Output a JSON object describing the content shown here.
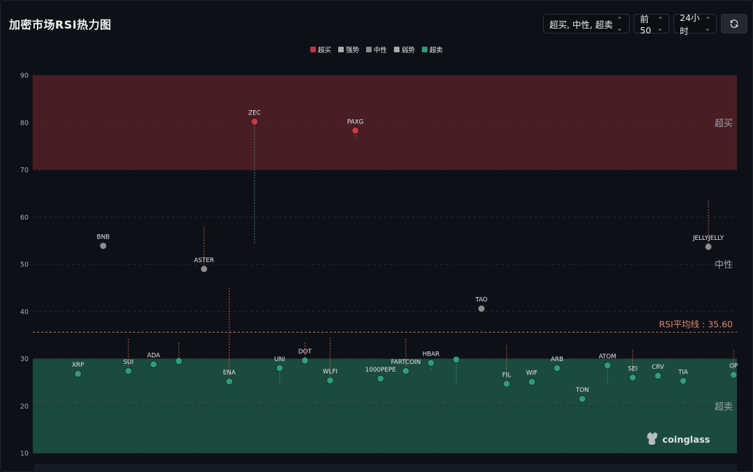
{
  "header": {
    "title": "加密市场RSI热力图",
    "filter_label": "超买, 中性, 超卖",
    "top_label": "前50",
    "period_label": "24小时"
  },
  "legend": [
    {
      "label": "超买",
      "color": "#c0353f"
    },
    {
      "label": "强势",
      "color": "#a9a9a9"
    },
    {
      "label": "中性",
      "color": "#8a8a8a"
    },
    {
      "label": "弱势",
      "color": "#a9a9a9"
    },
    {
      "label": "超卖",
      "color": "#2e9a7c"
    }
  ],
  "watermark": "coinglass",
  "chart_data": {
    "type": "scatter",
    "y_range": [
      10,
      90
    ],
    "y_ticks": [
      10,
      20,
      30,
      40,
      50,
      60,
      70,
      80,
      90
    ],
    "grid": true,
    "zones": [
      {
        "label": "超买",
        "from": 70,
        "to": 90,
        "color": "#4a1d24"
      },
      {
        "label": "中性",
        "from": 30,
        "to": 70,
        "color": null
      },
      {
        "label": "超卖",
        "from": 10,
        "to": 30,
        "color": "#1b4a3e"
      }
    ],
    "average": {
      "label": "RSI平均线 : 35.60",
      "value": 35.6
    },
    "points": [
      {
        "name": "XRP",
        "rsi": 26.8,
        "group": "超卖"
      },
      {
        "name": "BNB",
        "rsi": 53.9,
        "group": "中性"
      },
      {
        "name": "SUI",
        "rsi": 27.4,
        "group": "超卖",
        "range": [
          27.4,
          34.5
        ]
      },
      {
        "name": "ADA",
        "rsi": 28.8,
        "group": "超卖"
      },
      {
        "name": "",
        "rsi": 29.5,
        "group": "超卖",
        "range": [
          29.5,
          33.5
        ]
      },
      {
        "name": "ASTER",
        "rsi": 49.0,
        "group": "中性",
        "range": [
          49.0,
          58.0
        ]
      },
      {
        "name": "ENA",
        "rsi": 25.2,
        "group": "超卖",
        "range": [
          25.2,
          45.0
        ]
      },
      {
        "name": "ZEC",
        "rsi": 80.2,
        "group": "超买",
        "range": [
          54.5,
          80.2
        ]
      },
      {
        "name": "UNI",
        "rsi": 28.0,
        "group": "超卖",
        "range": [
          25.0,
          28.0
        ]
      },
      {
        "name": "DOT",
        "rsi": 29.6,
        "group": "超卖",
        "range": [
          29.6,
          33.5
        ]
      },
      {
        "name": "WLFI",
        "rsi": 25.4,
        "group": "超卖",
        "range": [
          25.4,
          34.5
        ]
      },
      {
        "name": "PAXG",
        "rsi": 78.3,
        "group": "超买",
        "range": [
          77.0,
          78.3
        ]
      },
      {
        "name": "1000PEPE",
        "rsi": 25.8,
        "group": "超卖"
      },
      {
        "name": "FARTCOIN",
        "rsi": 27.4,
        "group": "超卖",
        "range": [
          27.4,
          34.5
        ]
      },
      {
        "name": "HBAR",
        "rsi": 29.1,
        "group": "超卖",
        "range": [
          27.8,
          29.1
        ]
      },
      {
        "name": "",
        "rsi": 29.8,
        "group": "超卖",
        "range": [
          25.0,
          29.8
        ]
      },
      {
        "name": "TAO",
        "rsi": 40.6,
        "group": "中性"
      },
      {
        "name": "FIL",
        "rsi": 24.7,
        "group": "超卖",
        "range": [
          24.7,
          33.0
        ]
      },
      {
        "name": "WIF",
        "rsi": 25.1,
        "group": "超卖"
      },
      {
        "name": "ARB",
        "rsi": 28.0,
        "group": "超卖"
      },
      {
        "name": "TON",
        "rsi": 21.5,
        "group": "超卖"
      },
      {
        "name": "ATOM",
        "rsi": 28.6,
        "group": "超卖",
        "range": [
          25.0,
          28.6
        ]
      },
      {
        "name": "SEI",
        "rsi": 26.0,
        "group": "超卖",
        "range": [
          26.0,
          32.0
        ]
      },
      {
        "name": "CRV",
        "rsi": 26.4,
        "group": "超卖"
      },
      {
        "name": "TIA",
        "rsi": 25.3,
        "group": "超卖"
      },
      {
        "name": "JELLYJELLY",
        "rsi": 53.7,
        "group": "中性",
        "range": [
          53.7,
          63.8
        ]
      },
      {
        "name": "OP",
        "rsi": 26.6,
        "group": "超卖",
        "range": [
          26.6,
          32.0
        ]
      }
    ]
  }
}
